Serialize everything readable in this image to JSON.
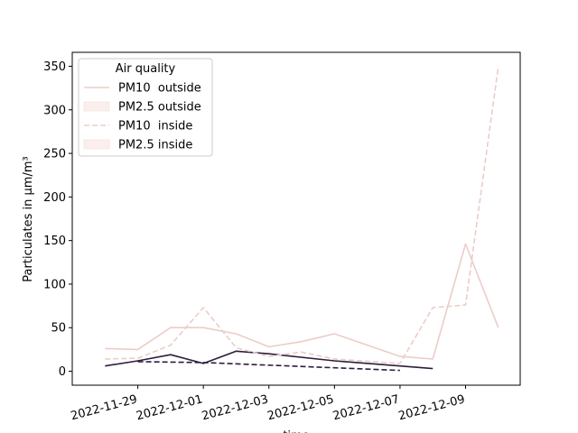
{
  "chart_data": {
    "type": "line",
    "title": "",
    "xlabel": "time",
    "ylabel": "Particulates in µm/m³",
    "x_ticks": [
      "2022-11-29",
      "2022-12-01",
      "2022-12-03",
      "2022-12-05",
      "2022-12-07",
      "2022-12-09"
    ],
    "y_ticks": [
      "0",
      "50",
      "100",
      "150",
      "200",
      "250",
      "300",
      "350"
    ],
    "ylim": [
      -16,
      366
    ],
    "xlim": [
      "2022-11-27",
      "2022-12-10 16:00"
    ],
    "grid": false,
    "legend": {
      "title": "Air quality",
      "position": "top-left",
      "entries": [
        "PM10  outside",
        "PM2.5 outside",
        "PM10  inside",
        "PM2.5 inside"
      ]
    },
    "colors": {
      "pm10": "#ebcdc8",
      "pm25": "#2d1e3e"
    },
    "series": [
      {
        "name": "PM10  outside",
        "style": "solid",
        "color": "#ebcdc8",
        "points": [
          [
            "2022-11-28",
            26
          ],
          [
            "2022-11-29",
            25
          ],
          [
            "2022-11-30",
            50
          ],
          [
            "2022-12-01",
            50
          ],
          [
            "2022-12-02",
            43
          ],
          [
            "2022-12-03",
            28
          ],
          [
            "2022-12-04",
            34
          ],
          [
            "2022-12-05",
            43
          ],
          [
            "2022-12-07",
            17
          ],
          [
            "2022-12-08",
            14
          ],
          [
            "2022-12-09",
            146
          ],
          [
            "2022-12-10",
            50
          ]
        ]
      },
      {
        "name": "PM2.5 outside",
        "style": "solid",
        "color": "#2d1e3e",
        "points": [
          [
            "2022-11-28",
            6
          ],
          [
            "2022-11-29",
            12
          ],
          [
            "2022-11-30",
            19
          ],
          [
            "2022-12-01",
            9
          ],
          [
            "2022-12-02",
            23
          ],
          [
            "2022-12-03",
            20
          ],
          [
            "2022-12-05",
            12
          ],
          [
            "2022-12-07",
            6
          ],
          [
            "2022-12-08",
            3
          ]
        ]
      },
      {
        "name": "PM10  inside",
        "style": "dashed",
        "color": "#ebcdc8",
        "points": [
          [
            "2022-11-28",
            14
          ],
          [
            "2022-11-29",
            15
          ],
          [
            "2022-11-30",
            30
          ],
          [
            "2022-12-01",
            73
          ],
          [
            "2022-12-02",
            27
          ],
          [
            "2022-12-03",
            17
          ],
          [
            "2022-12-04",
            22
          ],
          [
            "2022-12-05",
            14
          ],
          [
            "2022-12-07",
            9
          ],
          [
            "2022-12-08",
            73
          ],
          [
            "2022-12-09",
            76
          ],
          [
            "2022-12-10",
            350
          ]
        ]
      },
      {
        "name": "PM2.5 inside",
        "style": "dashed",
        "color": "#2d1e3e",
        "points": [
          [
            "2022-11-29",
            11
          ],
          [
            "2022-12-01",
            10
          ],
          [
            "2022-12-03",
            7
          ],
          [
            "2022-12-05",
            4
          ],
          [
            "2022-12-07",
            1
          ]
        ]
      }
    ]
  }
}
